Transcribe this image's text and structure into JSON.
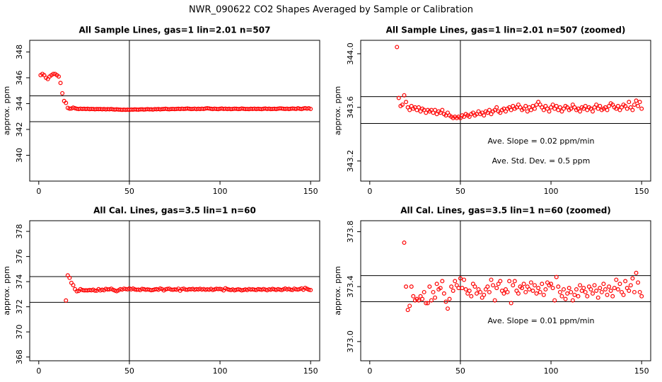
{
  "title": "NWR_090622  CO2 Shapes Averaged by Sample or Calibration",
  "chart_data": [
    {
      "type": "scatter",
      "title": "All Sample Lines, gas=1 lin=2.01 n=507",
      "ylabel": "approx. ppm",
      "xlim": [
        -5,
        155
      ],
      "ylim": [
        338,
        348.9
      ],
      "xticks": [
        0,
        50,
        100,
        150
      ],
      "yticks": [
        340,
        342,
        344,
        346,
        348
      ],
      "hlines": [
        344.6,
        342.6
      ],
      "vline": 50,
      "annotations": [],
      "color": "#ff0000",
      "x": [
        1,
        2,
        3,
        4,
        5,
        6,
        7,
        8,
        9,
        10,
        11,
        12,
        13,
        14,
        15,
        16,
        17,
        18,
        19,
        20,
        21,
        22,
        23,
        24,
        25,
        26,
        27,
        28,
        29,
        30,
        31,
        32,
        33,
        34,
        35,
        36,
        37,
        38,
        39,
        40,
        41,
        42,
        43,
        44,
        45,
        46,
        47,
        48,
        49,
        50,
        51,
        52,
        53,
        54,
        55,
        56,
        57,
        58,
        59,
        60,
        61,
        62,
        63,
        64,
        65,
        66,
        67,
        68,
        69,
        70,
        71,
        72,
        73,
        74,
        75,
        76,
        77,
        78,
        79,
        80,
        81,
        82,
        83,
        84,
        85,
        86,
        87,
        88,
        89,
        90,
        91,
        92,
        93,
        94,
        95,
        96,
        97,
        98,
        99,
        100,
        101,
        102,
        103,
        104,
        105,
        106,
        107,
        108,
        109,
        110,
        111,
        112,
        113,
        114,
        115,
        116,
        117,
        118,
        119,
        120,
        121,
        122,
        123,
        124,
        125,
        126,
        127,
        128,
        129,
        130,
        131,
        132,
        133,
        134,
        135,
        136,
        137,
        138,
        139,
        140,
        141,
        142,
        143,
        144,
        145,
        146,
        147,
        148,
        149,
        150
      ],
      "values": [
        346.2,
        346.3,
        346.2,
        346.0,
        345.9,
        346.1,
        346.2,
        346.3,
        346.3,
        346.2,
        346.1,
        345.6,
        344.8,
        344.2,
        344.05,
        343.67,
        343.61,
        343.62,
        343.69,
        343.64,
        343.6,
        343.58,
        343.61,
        343.59,
        343.6,
        343.58,
        343.6,
        343.57,
        343.59,
        343.58,
        343.56,
        343.58,
        343.57,
        343.58,
        343.56,
        343.58,
        343.55,
        343.57,
        343.56,
        343.58,
        343.55,
        343.54,
        343.56,
        343.54,
        343.53,
        343.52,
        343.53,
        343.52,
        343.53,
        343.52,
        343.54,
        343.53,
        343.55,
        343.54,
        343.53,
        343.55,
        343.56,
        343.54,
        343.55,
        343.57,
        343.55,
        343.56,
        343.54,
        343.57,
        343.56,
        343.58,
        343.55,
        343.57,
        343.58,
        343.6,
        343.57,
        343.56,
        343.58,
        343.59,
        343.57,
        343.59,
        343.6,
        343.58,
        343.61,
        343.59,
        343.6,
        343.62,
        343.6,
        343.58,
        343.59,
        343.61,
        343.57,
        343.6,
        343.58,
        343.61,
        343.59,
        343.62,
        343.64,
        343.62,
        343.6,
        343.58,
        343.61,
        343.59,
        343.57,
        343.6,
        343.62,
        343.59,
        343.61,
        343.58,
        343.6,
        343.57,
        343.59,
        343.61,
        343.6,
        343.58,
        343.59,
        343.62,
        343.6,
        343.58,
        343.59,
        343.57,
        343.6,
        343.59,
        343.61,
        343.58,
        343.6,
        343.59,
        343.57,
        343.6,
        343.62,
        343.59,
        343.61,
        343.58,
        343.59,
        343.6,
        343.58,
        343.61,
        343.63,
        343.62,
        343.6,
        343.59,
        343.61,
        343.58,
        343.6,
        343.62,
        343.61,
        343.59,
        343.64,
        343.6,
        343.58,
        343.62,
        343.65,
        343.61,
        343.64,
        343.59
      ]
    },
    {
      "type": "scatter",
      "title": "All Sample Lines, gas=1 lin=2.01 n=507 (zoomed)",
      "ylabel": "approx. ppm",
      "xlim": [
        -5,
        155
      ],
      "ylim": [
        343.05,
        344.1
      ],
      "xticks": [
        0,
        50,
        100,
        150
      ],
      "yticks": [
        343.2,
        343.6,
        {
          "value": 344,
          "label": "344.0"
        }
      ],
      "hlines": [
        343.68,
        343.48
      ],
      "vline": 50,
      "annotations": [
        "Ave. Slope =  0.02  ppm/min",
        "Ave. Std. Dev. =  0.5  ppm"
      ],
      "color": "#ff0000",
      "x": [
        15,
        16,
        17,
        18,
        19,
        20,
        21,
        22,
        23,
        24,
        25,
        26,
        27,
        28,
        29,
        30,
        31,
        32,
        33,
        34,
        35,
        36,
        37,
        38,
        39,
        40,
        41,
        42,
        43,
        44,
        45,
        46,
        47,
        48,
        49,
        50,
        51,
        52,
        53,
        54,
        55,
        56,
        57,
        58,
        59,
        60,
        61,
        62,
        63,
        64,
        65,
        66,
        67,
        68,
        69,
        70,
        71,
        72,
        73,
        74,
        75,
        76,
        77,
        78,
        79,
        80,
        81,
        82,
        83,
        84,
        85,
        86,
        87,
        88,
        89,
        90,
        91,
        92,
        93,
        94,
        95,
        96,
        97,
        98,
        99,
        100,
        101,
        102,
        103,
        104,
        105,
        106,
        107,
        108,
        109,
        110,
        111,
        112,
        113,
        114,
        115,
        116,
        117,
        118,
        119,
        120,
        121,
        122,
        123,
        124,
        125,
        126,
        127,
        128,
        129,
        130,
        131,
        132,
        133,
        134,
        135,
        136,
        137,
        138,
        139,
        140,
        141,
        142,
        143,
        144,
        145,
        146,
        147,
        148,
        149,
        150
      ],
      "values": [
        344.05,
        343.67,
        343.61,
        343.62,
        343.69,
        343.64,
        343.6,
        343.58,
        343.61,
        343.59,
        343.6,
        343.58,
        343.6,
        343.57,
        343.59,
        343.58,
        343.56,
        343.58,
        343.57,
        343.58,
        343.56,
        343.58,
        343.55,
        343.57,
        343.56,
        343.58,
        343.55,
        343.54,
        343.56,
        343.54,
        343.53,
        343.52,
        343.53,
        343.52,
        343.53,
        343.52,
        343.54,
        343.53,
        343.55,
        343.54,
        343.53,
        343.55,
        343.56,
        343.54,
        343.55,
        343.57,
        343.55,
        343.56,
        343.54,
        343.57,
        343.56,
        343.58,
        343.55,
        343.57,
        343.58,
        343.6,
        343.57,
        343.56,
        343.58,
        343.59,
        343.57,
        343.59,
        343.6,
        343.58,
        343.61,
        343.59,
        343.6,
        343.62,
        343.6,
        343.58,
        343.59,
        343.61,
        343.57,
        343.6,
        343.58,
        343.61,
        343.59,
        343.62,
        343.64,
        343.62,
        343.6,
        343.58,
        343.61,
        343.59,
        343.57,
        343.6,
        343.62,
        343.59,
        343.61,
        343.58,
        343.6,
        343.57,
        343.59,
        343.61,
        343.6,
        343.58,
        343.59,
        343.62,
        343.6,
        343.58,
        343.59,
        343.57,
        343.6,
        343.59,
        343.61,
        343.58,
        343.6,
        343.59,
        343.57,
        343.6,
        343.62,
        343.59,
        343.61,
        343.58,
        343.59,
        343.6,
        343.58,
        343.61,
        343.63,
        343.62,
        343.6,
        343.59,
        343.61,
        343.58,
        343.6,
        343.62,
        343.61,
        343.59,
        343.64,
        343.6,
        343.58,
        343.62,
        343.65,
        343.61,
        343.64,
        343.59
      ]
    },
    {
      "type": "scatter",
      "title": "All Cal. Lines, gas=3.5 lin=1 n=60",
      "ylabel": "approx. ppm",
      "xlim": [
        -5,
        155
      ],
      "ylim": [
        367.7,
        378.85
      ],
      "xticks": [
        0,
        50,
        100,
        150
      ],
      "yticks": [
        368,
        370,
        372,
        374,
        376,
        378
      ],
      "hlines": [
        374.4,
        372.35
      ],
      "vline": 50,
      "annotations": [],
      "color": "#ff0000",
      "x": [
        15,
        16,
        17,
        18,
        19,
        20,
        21,
        22,
        23,
        24,
        25,
        26,
        27,
        28,
        29,
        30,
        31,
        32,
        33,
        34,
        35,
        36,
        37,
        38,
        39,
        40,
        41,
        42,
        43,
        44,
        45,
        46,
        47,
        48,
        49,
        50,
        51,
        52,
        53,
        54,
        55,
        56,
        57,
        58,
        59,
        60,
        61,
        62,
        63,
        64,
        65,
        66,
        67,
        68,
        69,
        70,
        71,
        72,
        73,
        74,
        75,
        76,
        77,
        78,
        79,
        80,
        81,
        82,
        83,
        84,
        85,
        86,
        87,
        88,
        89,
        90,
        91,
        92,
        93,
        94,
        95,
        96,
        97,
        98,
        99,
        100,
        101,
        102,
        103,
        104,
        105,
        106,
        107,
        108,
        109,
        110,
        111,
        112,
        113,
        114,
        115,
        116,
        117,
        118,
        119,
        120,
        121,
        122,
        123,
        124,
        125,
        126,
        127,
        128,
        129,
        130,
        131,
        132,
        133,
        134,
        135,
        136,
        137,
        138,
        139,
        140,
        141,
        142,
        143,
        144,
        145,
        146,
        147,
        148,
        149,
        150
      ],
      "values": [
        372.5,
        374.5,
        374.3,
        373.9,
        373.72,
        373.4,
        373.23,
        373.26,
        373.4,
        373.33,
        373.3,
        373.31,
        373.3,
        373.33,
        373.31,
        373.36,
        373.28,
        373.28,
        373.4,
        373.3,
        373.36,
        373.32,
        373.42,
        373.38,
        373.39,
        373.44,
        373.35,
        373.29,
        373.24,
        373.31,
        373.4,
        373.37,
        373.44,
        373.41,
        373.39,
        373.46,
        373.39,
        373.45,
        373.38,
        373.35,
        373.37,
        373.33,
        373.42,
        373.4,
        373.35,
        373.38,
        373.36,
        373.32,
        373.34,
        373.38,
        373.4,
        373.36,
        373.45,
        373.41,
        373.3,
        373.39,
        373.42,
        373.44,
        373.37,
        373.35,
        373.38,
        373.36,
        373.44,
        373.28,
        373.41,
        373.44,
        373.37,
        373.35,
        373.4,
        373.39,
        373.42,
        373.36,
        373.4,
        373.38,
        373.43,
        373.37,
        373.41,
        373.35,
        373.39,
        373.36,
        373.42,
        373.34,
        373.38,
        373.43,
        373.41,
        373.42,
        373.39,
        373.3,
        373.47,
        373.4,
        373.36,
        373.33,
        373.38,
        373.31,
        373.35,
        373.39,
        373.36,
        373.3,
        373.34,
        373.38,
        373.33,
        373.41,
        373.37,
        373.39,
        373.36,
        373.33,
        373.4,
        373.38,
        373.35,
        373.41,
        373.37,
        373.32,
        373.39,
        373.36,
        373.42,
        373.38,
        373.34,
        373.4,
        373.37,
        373.33,
        373.39,
        373.45,
        373.38,
        373.42,
        373.36,
        373.34,
        373.44,
        373.39,
        373.37,
        373.41,
        373.46,
        373.36,
        373.5,
        373.43,
        373.36,
        373.33
      ]
    },
    {
      "type": "scatter",
      "title": "All Cal. Lines, gas=3.5 lin=1 n=60 (zoomed)",
      "ylabel": "approx. ppm",
      "xlim": [
        -5,
        155
      ],
      "ylim": [
        372.86,
        373.88
      ],
      "xticks": [
        0,
        50,
        100,
        150
      ],
      "yticks": [
        {
          "value": 373,
          "label": "373.0"
        },
        373.4,
        373.8
      ],
      "hlines": [
        373.48,
        373.29
      ],
      "vline": 50,
      "annotations": [
        "Ave. Slope =  0.01  ppm/min"
      ],
      "color": "#ff0000",
      "x": [
        19,
        20,
        21,
        22,
        23,
        24,
        25,
        26,
        27,
        28,
        29,
        30,
        31,
        32,
        33,
        34,
        35,
        36,
        37,
        38,
        39,
        40,
        41,
        42,
        43,
        44,
        45,
        46,
        47,
        48,
        49,
        50,
        51,
        52,
        53,
        54,
        55,
        56,
        57,
        58,
        59,
        60,
        61,
        62,
        63,
        64,
        65,
        66,
        67,
        68,
        69,
        70,
        71,
        72,
        73,
        74,
        75,
        76,
        77,
        78,
        79,
        80,
        81,
        82,
        83,
        84,
        85,
        86,
        87,
        88,
        89,
        90,
        91,
        92,
        93,
        94,
        95,
        96,
        97,
        98,
        99,
        100,
        101,
        102,
        103,
        104,
        105,
        106,
        107,
        108,
        109,
        110,
        111,
        112,
        113,
        114,
        115,
        116,
        117,
        118,
        119,
        120,
        121,
        122,
        123,
        124,
        125,
        126,
        127,
        128,
        129,
        130,
        131,
        132,
        133,
        134,
        135,
        136,
        137,
        138,
        139,
        140,
        141,
        142,
        143,
        144,
        145,
        146,
        147,
        148,
        149,
        150
      ],
      "values": [
        373.72,
        373.4,
        373.23,
        373.26,
        373.4,
        373.33,
        373.3,
        373.31,
        373.3,
        373.33,
        373.31,
        373.36,
        373.28,
        373.28,
        373.4,
        373.3,
        373.36,
        373.32,
        373.42,
        373.38,
        373.39,
        373.44,
        373.35,
        373.29,
        373.24,
        373.31,
        373.4,
        373.37,
        373.44,
        373.41,
        373.39,
        373.46,
        373.39,
        373.45,
        373.38,
        373.35,
        373.37,
        373.33,
        373.42,
        373.4,
        373.35,
        373.38,
        373.36,
        373.32,
        373.34,
        373.38,
        373.4,
        373.36,
        373.45,
        373.41,
        373.3,
        373.39,
        373.42,
        373.44,
        373.37,
        373.35,
        373.38,
        373.36,
        373.44,
        373.28,
        373.41,
        373.44,
        373.37,
        373.35,
        373.4,
        373.39,
        373.42,
        373.36,
        373.4,
        373.38,
        373.43,
        373.37,
        373.41,
        373.35,
        373.39,
        373.36,
        373.42,
        373.34,
        373.38,
        373.43,
        373.41,
        373.42,
        373.39,
        373.3,
        373.47,
        373.4,
        373.36,
        373.33,
        373.38,
        373.31,
        373.35,
        373.39,
        373.36,
        373.3,
        373.34,
        373.38,
        373.33,
        373.41,
        373.37,
        373.39,
        373.36,
        373.33,
        373.4,
        373.38,
        373.35,
        373.41,
        373.37,
        373.32,
        373.39,
        373.36,
        373.42,
        373.38,
        373.34,
        373.4,
        373.37,
        373.33,
        373.39,
        373.45,
        373.38,
        373.42,
        373.36,
        373.34,
        373.44,
        373.39,
        373.37,
        373.41,
        373.46,
        373.36,
        373.5,
        373.43,
        373.36,
        373.33
      ]
    }
  ]
}
